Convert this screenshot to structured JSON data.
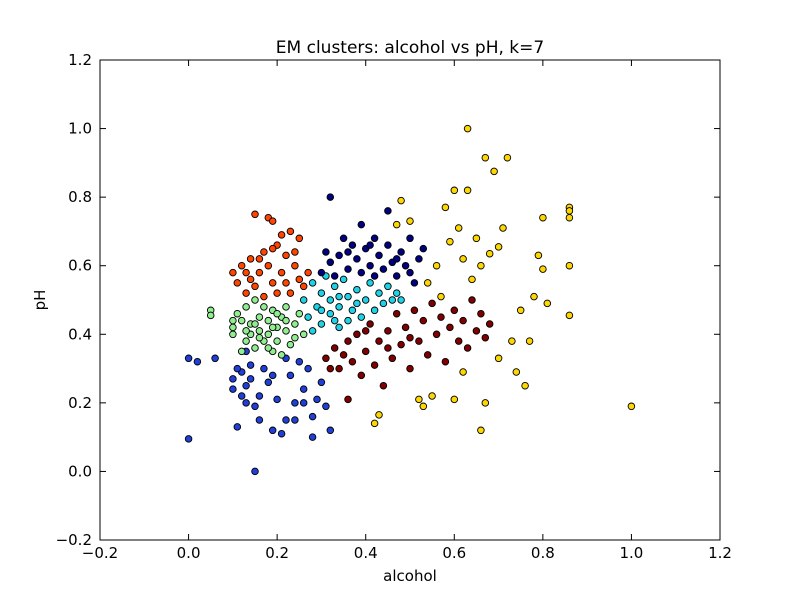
{
  "chart_data": {
    "type": "scatter",
    "title": "EM clusters: alcohol vs pH, k=7",
    "xlabel": "alcohol",
    "ylabel": "pH",
    "xlim": [
      -0.2,
      1.2
    ],
    "ylim": [
      -0.2,
      1.2
    ],
    "xticks": [
      -0.2,
      0.0,
      0.2,
      0.4,
      0.6,
      0.8,
      1.0,
      1.2
    ],
    "yticks": [
      -0.2,
      0.0,
      0.2,
      0.4,
      0.6,
      0.8,
      1.0,
      1.2
    ],
    "xtick_labels": [
      "−0.2",
      "0.0",
      "0.2",
      "0.4",
      "0.6",
      "0.8",
      "1.0",
      "1.2"
    ],
    "ytick_labels": [
      "−0.2",
      "0.0",
      "0.2",
      "0.4",
      "0.6",
      "0.8",
      "1.0",
      "1.2"
    ],
    "grid": false,
    "legend": "none",
    "series": [
      {
        "color": "#1f3fd8",
        "points": [
          [
            0.0,
            0.095
          ],
          [
            0.0,
            0.33
          ],
          [
            0.02,
            0.32
          ],
          [
            0.06,
            0.33
          ],
          [
            0.1,
            0.27
          ],
          [
            0.1,
            0.24
          ],
          [
            0.11,
            0.13
          ],
          [
            0.12,
            0.29
          ],
          [
            0.12,
            0.22
          ],
          [
            0.13,
            0.25
          ],
          [
            0.13,
            0.2
          ],
          [
            0.14,
            0.31
          ],
          [
            0.15,
            0.0
          ],
          [
            0.15,
            0.19
          ],
          [
            0.16,
            0.22
          ],
          [
            0.16,
            0.15
          ],
          [
            0.17,
            0.3
          ],
          [
            0.18,
            0.26
          ],
          [
            0.19,
            0.12
          ],
          [
            0.2,
            0.21
          ],
          [
            0.21,
            0.11
          ],
          [
            0.22,
            0.15
          ],
          [
            0.22,
            0.33
          ],
          [
            0.23,
            0.28
          ],
          [
            0.24,
            0.2
          ],
          [
            0.24,
            0.15
          ],
          [
            0.25,
            0.32
          ],
          [
            0.26,
            0.24
          ],
          [
            0.27,
            0.3
          ],
          [
            0.28,
            0.1
          ],
          [
            0.28,
            0.16
          ],
          [
            0.29,
            0.21
          ],
          [
            0.3,
            0.26
          ],
          [
            0.31,
            0.19
          ],
          [
            0.32,
            0.12
          ],
          [
            0.11,
            0.3
          ],
          [
            0.13,
            0.35
          ],
          [
            0.19,
            0.28
          ],
          [
            0.26,
            0.2
          ],
          [
            0.14,
            0.27
          ]
        ]
      },
      {
        "color": "#90ee90",
        "points": [
          [
            0.05,
            0.47
          ],
          [
            0.05,
            0.455
          ],
          [
            0.1,
            0.44
          ],
          [
            0.1,
            0.42
          ],
          [
            0.1,
            0.4
          ],
          [
            0.11,
            0.46
          ],
          [
            0.12,
            0.35
          ],
          [
            0.13,
            0.48
          ],
          [
            0.13,
            0.38
          ],
          [
            0.14,
            0.43
          ],
          [
            0.14,
            0.4
          ],
          [
            0.15,
            0.5
          ],
          [
            0.15,
            0.36
          ],
          [
            0.16,
            0.45
          ],
          [
            0.16,
            0.41
          ],
          [
            0.17,
            0.38
          ],
          [
            0.17,
            0.48
          ],
          [
            0.18,
            0.44
          ],
          [
            0.18,
            0.4
          ],
          [
            0.19,
            0.35
          ],
          [
            0.19,
            0.47
          ],
          [
            0.2,
            0.42
          ],
          [
            0.2,
            0.38
          ],
          [
            0.21,
            0.45
          ],
          [
            0.21,
            0.34
          ],
          [
            0.22,
            0.41
          ],
          [
            0.22,
            0.48
          ],
          [
            0.23,
            0.37
          ],
          [
            0.24,
            0.43
          ],
          [
            0.24,
            0.39
          ],
          [
            0.25,
            0.46
          ],
          [
            0.26,
            0.4
          ],
          [
            0.12,
            0.44
          ],
          [
            0.15,
            0.43
          ],
          [
            0.18,
            0.36
          ],
          [
            0.2,
            0.46
          ],
          [
            0.16,
            0.39
          ],
          [
            0.22,
            0.44
          ],
          [
            0.13,
            0.41
          ],
          [
            0.19,
            0.42
          ]
        ]
      },
      {
        "color": "#ff4500",
        "points": [
          [
            0.1,
            0.58
          ],
          [
            0.11,
            0.55
          ],
          [
            0.12,
            0.6
          ],
          [
            0.13,
            0.52
          ],
          [
            0.14,
            0.56
          ],
          [
            0.14,
            0.62
          ],
          [
            0.15,
            0.75
          ],
          [
            0.15,
            0.54
          ],
          [
            0.16,
            0.58
          ],
          [
            0.17,
            0.64
          ],
          [
            0.17,
            0.51
          ],
          [
            0.18,
            0.74
          ],
          [
            0.18,
            0.6
          ],
          [
            0.19,
            0.73
          ],
          [
            0.19,
            0.55
          ],
          [
            0.2,
            0.66
          ],
          [
            0.2,
            0.52
          ],
          [
            0.21,
            0.69
          ],
          [
            0.21,
            0.58
          ],
          [
            0.22,
            0.63
          ],
          [
            0.22,
            0.55
          ],
          [
            0.23,
            0.7
          ],
          [
            0.23,
            0.52
          ],
          [
            0.24,
            0.6
          ],
          [
            0.25,
            0.68
          ],
          [
            0.25,
            0.56
          ],
          [
            0.26,
            0.54
          ],
          [
            0.27,
            0.58
          ],
          [
            0.16,
            0.62
          ],
          [
            0.19,
            0.65
          ],
          [
            0.24,
            0.64
          ],
          [
            0.13,
            0.58
          ]
        ]
      },
      {
        "color": "#1fd3e6",
        "points": [
          [
            0.26,
            0.5
          ],
          [
            0.27,
            0.45
          ],
          [
            0.28,
            0.55
          ],
          [
            0.28,
            0.41
          ],
          [
            0.29,
            0.48
          ],
          [
            0.3,
            0.52
          ],
          [
            0.3,
            0.43
          ],
          [
            0.31,
            0.57
          ],
          [
            0.32,
            0.46
          ],
          [
            0.32,
            0.5
          ],
          [
            0.33,
            0.54
          ],
          [
            0.34,
            0.42
          ],
          [
            0.34,
            0.48
          ],
          [
            0.35,
            0.56
          ],
          [
            0.36,
            0.44
          ],
          [
            0.36,
            0.51
          ],
          [
            0.37,
            0.47
          ],
          [
            0.38,
            0.53
          ],
          [
            0.39,
            0.45
          ],
          [
            0.4,
            0.5
          ],
          [
            0.41,
            0.55
          ],
          [
            0.42,
            0.47
          ],
          [
            0.43,
            0.52
          ],
          [
            0.44,
            0.49
          ],
          [
            0.45,
            0.54
          ],
          [
            0.46,
            0.5
          ],
          [
            0.47,
            0.52
          ],
          [
            0.48,
            0.5
          ],
          [
            0.3,
            0.47
          ],
          [
            0.34,
            0.51
          ],
          [
            0.38,
            0.49
          ],
          [
            0.33,
            0.44
          ]
        ]
      },
      {
        "color": "#000080",
        "points": [
          [
            0.3,
            0.58
          ],
          [
            0.31,
            0.64
          ],
          [
            0.32,
            0.8
          ],
          [
            0.32,
            0.61
          ],
          [
            0.33,
            0.57
          ],
          [
            0.34,
            0.63
          ],
          [
            0.35,
            0.68
          ],
          [
            0.36,
            0.59
          ],
          [
            0.37,
            0.66
          ],
          [
            0.38,
            0.62
          ],
          [
            0.39,
            0.72
          ],
          [
            0.39,
            0.58
          ],
          [
            0.4,
            0.65
          ],
          [
            0.41,
            0.6
          ],
          [
            0.42,
            0.68
          ],
          [
            0.42,
            0.57
          ],
          [
            0.43,
            0.63
          ],
          [
            0.44,
            0.59
          ],
          [
            0.45,
            0.66
          ],
          [
            0.45,
            0.76
          ],
          [
            0.46,
            0.61
          ],
          [
            0.47,
            0.57
          ],
          [
            0.48,
            0.64
          ],
          [
            0.49,
            0.6
          ],
          [
            0.5,
            0.68
          ],
          [
            0.5,
            0.58
          ],
          [
            0.51,
            0.55
          ],
          [
            0.52,
            0.62
          ],
          [
            0.53,
            0.65
          ],
          [
            0.36,
            0.64
          ],
          [
            0.41,
            0.66
          ],
          [
            0.47,
            0.62
          ]
        ]
      },
      {
        "color": "#800000",
        "points": [
          [
            0.31,
            0.33
          ],
          [
            0.32,
            0.3
          ],
          [
            0.33,
            0.36
          ],
          [
            0.34,
            0.3
          ],
          [
            0.35,
            0.34
          ],
          [
            0.36,
            0.21
          ],
          [
            0.36,
            0.38
          ],
          [
            0.37,
            0.32
          ],
          [
            0.38,
            0.4
          ],
          [
            0.39,
            0.28
          ],
          [
            0.4,
            0.35
          ],
          [
            0.41,
            0.43
          ],
          [
            0.42,
            0.31
          ],
          [
            0.43,
            0.38
          ],
          [
            0.44,
            0.25
          ],
          [
            0.45,
            0.41
          ],
          [
            0.46,
            0.33
          ],
          [
            0.47,
            0.46
          ],
          [
            0.48,
            0.37
          ],
          [
            0.49,
            0.42
          ],
          [
            0.5,
            0.3
          ],
          [
            0.51,
            0.47
          ],
          [
            0.52,
            0.38
          ],
          [
            0.53,
            0.44
          ],
          [
            0.54,
            0.34
          ],
          [
            0.55,
            0.49
          ],
          [
            0.56,
            0.4
          ],
          [
            0.57,
            0.45
          ],
          [
            0.58,
            0.32
          ],
          [
            0.59,
            0.42
          ],
          [
            0.6,
            0.47
          ],
          [
            0.61,
            0.38
          ],
          [
            0.62,
            0.44
          ],
          [
            0.63,
            0.36
          ],
          [
            0.64,
            0.5
          ],
          [
            0.65,
            0.41
          ],
          [
            0.66,
            0.46
          ],
          [
            0.67,
            0.39
          ],
          [
            0.68,
            0.43
          ],
          [
            0.4,
            0.41
          ],
          [
            0.45,
            0.36
          ],
          [
            0.5,
            0.39
          ]
        ]
      },
      {
        "color": "#ffd700",
        "points": [
          [
            0.42,
            0.14
          ],
          [
            0.43,
            0.165
          ],
          [
            0.47,
            0.72
          ],
          [
            0.48,
            0.79
          ],
          [
            0.5,
            0.73
          ],
          [
            0.52,
            0.21
          ],
          [
            0.53,
            0.19
          ],
          [
            0.54,
            0.55
          ],
          [
            0.55,
            0.22
          ],
          [
            0.56,
            0.6
          ],
          [
            0.58,
            0.77
          ],
          [
            0.59,
            0.67
          ],
          [
            0.6,
            0.82
          ],
          [
            0.6,
            0.21
          ],
          [
            0.61,
            0.71
          ],
          [
            0.62,
            0.62
          ],
          [
            0.62,
            0.29
          ],
          [
            0.63,
            0.82
          ],
          [
            0.63,
            1.0
          ],
          [
            0.64,
            0.56
          ],
          [
            0.65,
            0.68
          ],
          [
            0.66,
            0.12
          ],
          [
            0.67,
            0.915
          ],
          [
            0.67,
            0.2
          ],
          [
            0.68,
            0.635
          ],
          [
            0.69,
            0.875
          ],
          [
            0.7,
            0.655
          ],
          [
            0.71,
            0.71
          ],
          [
            0.72,
            0.915
          ],
          [
            0.73,
            0.38
          ],
          [
            0.74,
            0.29
          ],
          [
            0.75,
            0.47
          ],
          [
            0.76,
            0.25
          ],
          [
            0.77,
            0.38
          ],
          [
            0.78,
            0.51
          ],
          [
            0.79,
            0.63
          ],
          [
            0.8,
            0.74
          ],
          [
            0.8,
            0.59
          ],
          [
            0.81,
            0.49
          ],
          [
            0.86,
            0.77
          ],
          [
            0.86,
            0.76
          ],
          [
            0.86,
            0.74
          ],
          [
            0.86,
            0.6
          ],
          [
            0.86,
            0.455
          ],
          [
            1.0,
            0.19
          ],
          [
            0.57,
            0.51
          ],
          [
            0.66,
            0.6
          ],
          [
            0.7,
            0.33
          ]
        ]
      }
    ]
  }
}
